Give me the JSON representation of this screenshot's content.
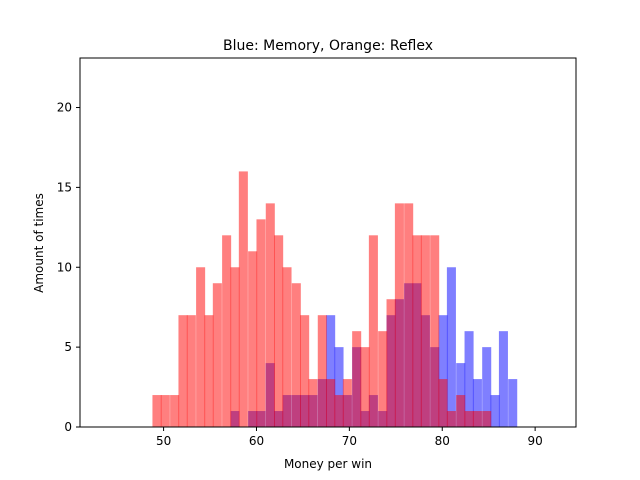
{
  "chart_data": {
    "type": "bar",
    "title": "Blue: Memory, Orange: Reflex",
    "xlabel": "Money per win",
    "ylabel": "Amount of times",
    "xlim": [
      41.0,
      94.4
    ],
    "ylim": [
      0,
      23.1
    ],
    "xticks": [
      50,
      60,
      70,
      80,
      90
    ],
    "yticks": [
      0,
      5,
      10,
      15,
      20
    ],
    "grid": false,
    "bin_width": 0.93,
    "series": [
      {
        "color": "#0000ff",
        "opacity": 0.5,
        "bins": [
          [
            57.2,
            1
          ],
          [
            59.1,
            1
          ],
          [
            60.0,
            1
          ],
          [
            61.0,
            4
          ],
          [
            61.9,
            1
          ],
          [
            62.8,
            2
          ],
          [
            63.8,
            2
          ],
          [
            64.7,
            2
          ],
          [
            65.6,
            2
          ],
          [
            66.6,
            3
          ],
          [
            67.5,
            7
          ],
          [
            68.4,
            5
          ],
          [
            69.3,
            2
          ],
          [
            70.3,
            5
          ],
          [
            71.2,
            1
          ],
          [
            72.1,
            2
          ],
          [
            73.1,
            1
          ],
          [
            74.0,
            7
          ],
          [
            74.9,
            8
          ],
          [
            75.9,
            9
          ],
          [
            76.8,
            9
          ],
          [
            77.7,
            7
          ],
          [
            78.7,
            5
          ],
          [
            79.6,
            7
          ],
          [
            80.5,
            10
          ],
          [
            81.5,
            4
          ],
          [
            82.4,
            6
          ],
          [
            83.3,
            3
          ],
          [
            84.3,
            5
          ],
          [
            85.2,
            2
          ],
          [
            86.1,
            6
          ],
          [
            87.1,
            3
          ]
        ]
      },
      {
        "color": "#ff0000",
        "opacity": 0.5,
        "bins": [
          [
            48.8,
            2
          ],
          [
            49.7,
            2
          ],
          [
            50.7,
            2
          ],
          [
            51.6,
            7
          ],
          [
            52.5,
            7
          ],
          [
            53.5,
            10
          ],
          [
            54.4,
            7
          ],
          [
            55.3,
            9
          ],
          [
            56.3,
            12
          ],
          [
            57.2,
            10
          ],
          [
            58.1,
            16
          ],
          [
            59.1,
            11
          ],
          [
            60.0,
            13
          ],
          [
            61.0,
            14
          ],
          [
            61.9,
            12
          ],
          [
            62.8,
            10
          ],
          [
            63.8,
            9
          ],
          [
            64.7,
            7
          ],
          [
            65.6,
            3
          ],
          [
            66.6,
            7
          ],
          [
            67.5,
            3
          ],
          [
            68.4,
            2
          ],
          [
            69.3,
            3
          ],
          [
            70.3,
            6
          ],
          [
            71.2,
            5
          ],
          [
            72.1,
            12
          ],
          [
            73.1,
            6
          ],
          [
            74.0,
            8
          ],
          [
            74.9,
            14
          ],
          [
            75.9,
            14
          ],
          [
            76.8,
            12
          ],
          [
            77.7,
            12
          ],
          [
            78.7,
            12
          ],
          [
            79.6,
            3
          ],
          [
            80.5,
            1
          ],
          [
            81.5,
            2
          ],
          [
            82.4,
            1
          ],
          [
            83.3,
            1
          ],
          [
            84.3,
            1
          ]
        ]
      }
    ]
  }
}
